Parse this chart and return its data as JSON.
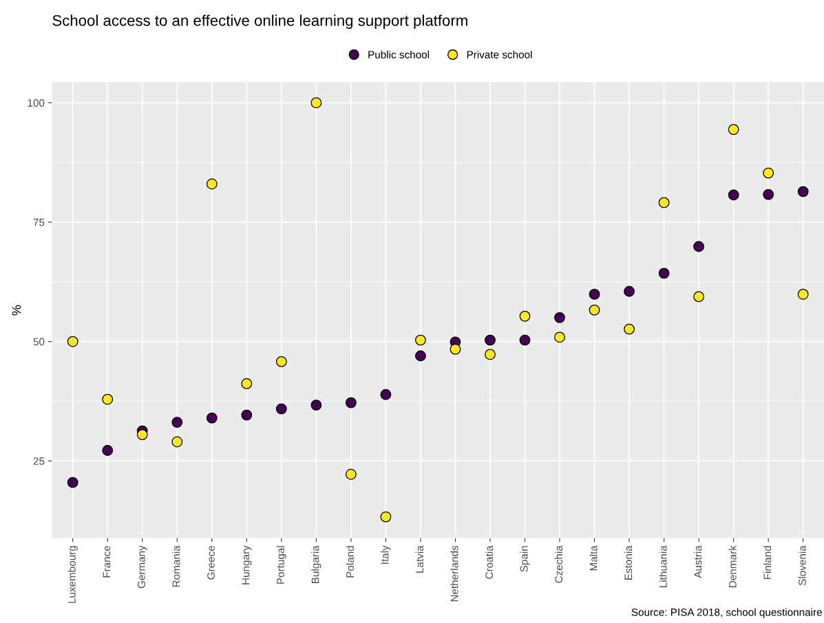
{
  "chart_data": {
    "type": "scatter",
    "title": "School access to an effective online learning support platform",
    "ylabel": "%",
    "categories": [
      "Luxembourg",
      "France",
      "Germany",
      "Romania",
      "Greece",
      "Hungary",
      "Portugal",
      "Bulgaria",
      "Poland",
      "Italy",
      "Latvia",
      "Netherlands",
      "Croatia",
      "Spain",
      "Czechia",
      "Malta",
      "Estonia",
      "Lithuania",
      "Austria",
      "Denmark",
      "Finland",
      "Slovenia"
    ],
    "series": [
      {
        "name": "Public school",
        "color": "#440154",
        "values": [
          20.5,
          27.2,
          31.3,
          33.1,
          34.0,
          34.6,
          35.9,
          36.7,
          37.2,
          38.9,
          47.0,
          49.9,
          50.3,
          50.3,
          55.0,
          59.9,
          60.5,
          64.3,
          69.9,
          80.7,
          80.8,
          81.4
        ]
      },
      {
        "name": "Private school",
        "color": "#fde725",
        "values": [
          50.0,
          37.9,
          30.5,
          29.0,
          83.0,
          41.2,
          45.8,
          100.0,
          22.2,
          13.3,
          50.3,
          48.4,
          47.3,
          55.3,
          50.9,
          56.6,
          52.6,
          79.1,
          59.4,
          94.4,
          85.3,
          59.9
        ]
      }
    ],
    "ylim": [
      8.8,
      104.3
    ],
    "yticks": [
      25,
      50,
      75,
      100
    ],
    "grid": true,
    "legend": "top",
    "marker": "circle",
    "annotations": [
      "Source: PISA 2018, school questionnaire"
    ]
  }
}
